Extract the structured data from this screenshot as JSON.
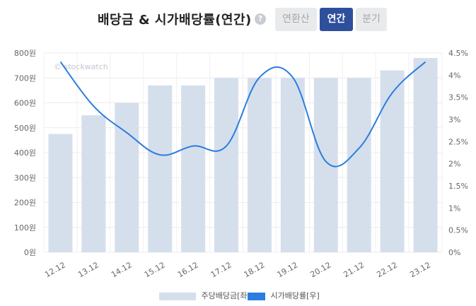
{
  "header": {
    "title": "배당금 & 시가배당률(연간)",
    "help_icon": "help-circle-icon",
    "tabs": [
      {
        "label": "연환산",
        "active": false
      },
      {
        "label": "연간",
        "active": true
      },
      {
        "label": "분기",
        "active": false
      }
    ]
  },
  "watermark": "© stockwatch",
  "chart_data": {
    "type": "bar+line",
    "categories": [
      "12.12",
      "13.12",
      "14.12",
      "15.12",
      "16.12",
      "17.12",
      "18.12",
      "19.12",
      "20.12",
      "21.12",
      "22.12",
      "23.12"
    ],
    "series": [
      {
        "name": "주당배당금[좌]",
        "type": "bar",
        "axis": "left",
        "color": "#d5dfec",
        "values": [
          475,
          550,
          600,
          670,
          670,
          700,
          700,
          700,
          700,
          700,
          730,
          780
        ]
      },
      {
        "name": "시가배당률[우]",
        "type": "line",
        "axis": "right",
        "color": "#2b7de0",
        "values": [
          4.3,
          3.3,
          2.7,
          2.2,
          2.4,
          2.4,
          3.95,
          3.95,
          2.05,
          2.35,
          3.6,
          4.3
        ]
      }
    ],
    "y_left": {
      "min": 0,
      "max": 800,
      "step": 100,
      "suffix": "원",
      "tick_labels": [
        "0원",
        "100원",
        "200원",
        "300원",
        "400원",
        "500원",
        "600원",
        "700원",
        "800원"
      ]
    },
    "y_right": {
      "min": 0,
      "max": 4.5,
      "step": 0.5,
      "suffix": "%",
      "tick_labels": [
        "0%",
        "0.5%",
        "1%",
        "1.5%",
        "2%",
        "2.5%",
        "3%",
        "3.5%",
        "4%",
        "4.5%"
      ]
    },
    "grid": true,
    "legend": "bottom"
  }
}
